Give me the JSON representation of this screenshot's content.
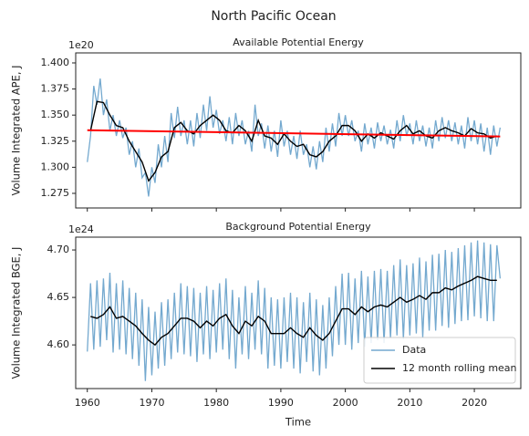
{
  "title": "North Pacific Ocean",
  "chart_data": [
    {
      "type": "line",
      "title": "Available Potential Energy",
      "offset_label": "1e20",
      "ylabel": "Volume Integrated APE, J",
      "xlim": [
        1958.2,
        2027.2
      ],
      "xticks": [
        1960,
        1970,
        1980,
        1990,
        2000,
        2010,
        2020
      ],
      "xtick_labels": false,
      "ylim": [
        1.261,
        1.4096
      ],
      "yticks": [
        1.275,
        {
          "value": 1.3,
          "label": "1.300"
        },
        1.325,
        {
          "value": 1.35,
          "label": "1.350"
        },
        1.375,
        {
          "value": 1.4,
          "label": "1.400"
        }
      ],
      "series": [
        {
          "color": "#74a9cf",
          "x": [
            1960,
            1960.5,
            1961,
            1961.5,
            1962,
            1962.5,
            1963,
            1963.5,
            1964,
            1964.5,
            1965,
            1965.5,
            1966,
            1966.5,
            1967,
            1967.5,
            1968,
            1968.5,
            1969,
            1969.5,
            1970,
            1970.5,
            1971,
            1971.5,
            1972,
            1972.5,
            1973,
            1973.5,
            1974,
            1974.5,
            1975,
            1975.5,
            1976,
            1976.5,
            1977,
            1977.5,
            1978,
            1978.5,
            1979,
            1979.5,
            1980,
            1980.5,
            1981,
            1981.5,
            1982,
            1982.5,
            1983,
            1983.5,
            1984,
            1984.5,
            1985,
            1985.5,
            1986,
            1986.5,
            1987,
            1987.5,
            1988,
            1988.5,
            1989,
            1989.5,
            1990,
            1990.5,
            1991,
            1991.5,
            1992,
            1992.5,
            1993,
            1993.5,
            1994,
            1994.5,
            1995,
            1995.5,
            1996,
            1996.5,
            1997,
            1997.5,
            1998,
            1998.5,
            1999,
            1999.5,
            2000,
            2000.5,
            2001,
            2001.5,
            2002,
            2002.5,
            2003,
            2003.5,
            2004,
            2004.5,
            2005,
            2005.5,
            2006,
            2006.5,
            2007,
            2007.5,
            2008,
            2008.5,
            2009,
            2009.5,
            2010,
            2010.5,
            2011,
            2011.5,
            2012,
            2012.5,
            2013,
            2013.5,
            2014,
            2014.5,
            2015,
            2015.5,
            2016,
            2016.5,
            2017,
            2017.5,
            2018,
            2018.5,
            2019,
            2019.5,
            2020,
            2020.5,
            2021,
            2021.5,
            2022,
            2022.5,
            2023,
            2023.5,
            2024
          ],
          "values": [
            1.305,
            1.33,
            1.378,
            1.36,
            1.385,
            1.35,
            1.365,
            1.335,
            1.35,
            1.33,
            1.345,
            1.328,
            1.338,
            1.312,
            1.325,
            1.3,
            1.318,
            1.29,
            1.295,
            1.272,
            1.3,
            1.285,
            1.322,
            1.3,
            1.33,
            1.305,
            1.352,
            1.328,
            1.358,
            1.33,
            1.345,
            1.322,
            1.345,
            1.32,
            1.352,
            1.328,
            1.36,
            1.335,
            1.368,
            1.338,
            1.355,
            1.332,
            1.345,
            1.325,
            1.348,
            1.322,
            1.352,
            1.33,
            1.345,
            1.322,
            1.335,
            1.315,
            1.36,
            1.33,
            1.342,
            1.318,
            1.34,
            1.315,
            1.335,
            1.31,
            1.345,
            1.32,
            1.335,
            1.312,
            1.33,
            1.308,
            1.335,
            1.312,
            1.322,
            1.3,
            1.32,
            1.298,
            1.325,
            1.305,
            1.338,
            1.315,
            1.342,
            1.32,
            1.352,
            1.33,
            1.35,
            1.33,
            1.345,
            1.325,
            1.335,
            1.315,
            1.342,
            1.322,
            1.338,
            1.318,
            1.343,
            1.325,
            1.34,
            1.322,
            1.336,
            1.318,
            1.345,
            1.325,
            1.35,
            1.33,
            1.342,
            1.322,
            1.345,
            1.325,
            1.34,
            1.32,
            1.338,
            1.318,
            1.345,
            1.325,
            1.348,
            1.328,
            1.345,
            1.325,
            1.343,
            1.322,
            1.34,
            1.318,
            1.348,
            1.325,
            1.345,
            1.322,
            1.342,
            1.315,
            1.338,
            1.312,
            1.34,
            1.32,
            1.338
          ]
        },
        {
          "color": "#000000",
          "x": [
            1960.5,
            1961.5,
            1962.5,
            1963.5,
            1964.5,
            1965.5,
            1966.5,
            1967.5,
            1968.5,
            1969.5,
            1970.5,
            1971.5,
            1972.5,
            1973.5,
            1974.5,
            1975.5,
            1976.5,
            1977.5,
            1978.5,
            1979.5,
            1980.5,
            1981.5,
            1982.5,
            1983.5,
            1984.5,
            1985.5,
            1986.5,
            1987.5,
            1988.5,
            1989.5,
            1990.5,
            1991.5,
            1992.5,
            1993.5,
            1994.5,
            1995.5,
            1996.5,
            1997.5,
            1998.5,
            1999.5,
            2000.5,
            2001.5,
            2002.5,
            2003.5,
            2004.5,
            2005.5,
            2006.5,
            2007.5,
            2008.5,
            2009.5,
            2010.5,
            2011.5,
            2012.5,
            2013.5,
            2014.5,
            2015.5,
            2016.5,
            2017.5,
            2018.5,
            2019.5,
            2020.5,
            2021.5,
            2022.5,
            2023.5
          ],
          "values": [
            1.335,
            1.363,
            1.362,
            1.35,
            1.34,
            1.338,
            1.325,
            1.315,
            1.305,
            1.287,
            1.295,
            1.31,
            1.315,
            1.338,
            1.343,
            1.335,
            1.332,
            1.34,
            1.345,
            1.35,
            1.345,
            1.335,
            1.333,
            1.34,
            1.335,
            1.325,
            1.345,
            1.33,
            1.328,
            1.322,
            1.332,
            1.325,
            1.32,
            1.322,
            1.312,
            1.31,
            1.315,
            1.325,
            1.33,
            1.34,
            1.34,
            1.335,
            1.325,
            1.332,
            1.328,
            1.333,
            1.33,
            1.327,
            1.335,
            1.34,
            1.332,
            1.335,
            1.33,
            1.328,
            1.335,
            1.338,
            1.335,
            1.333,
            1.33,
            1.337,
            1.333,
            1.332,
            1.328,
            1.33
          ]
        },
        {
          "color": "#ff0000",
          "x": [
            1960,
            2024
          ],
          "values": [
            1.3355,
            1.3295
          ]
        }
      ]
    },
    {
      "type": "line",
      "title": "Background Potential Energy",
      "offset_label": "1e24",
      "ylabel": "Volume Integrated BGE, J",
      "xlabel": "Time",
      "xlim": [
        1958.2,
        2027.2
      ],
      "xticks": [
        1960,
        1970,
        1980,
        1990,
        2000,
        2010,
        2020
      ],
      "xtick_labels": true,
      "ylim": [
        4.554,
        4.7135
      ],
      "yticks": [
        {
          "value": 4.6,
          "label": "4.60"
        },
        4.65,
        {
          "value": 4.7,
          "label": "4.70"
        }
      ],
      "legend": "lower right",
      "series": [
        {
          "name": "Data",
          "color": "#74a9cf",
          "x": [
            1960,
            1960.5,
            1961,
            1961.5,
            1962,
            1962.5,
            1963,
            1963.5,
            1964,
            1964.5,
            1965,
            1965.5,
            1966,
            1966.5,
            1967,
            1967.5,
            1968,
            1968.5,
            1969,
            1969.5,
            1970,
            1970.5,
            1971,
            1971.5,
            1972,
            1972.5,
            1973,
            1973.5,
            1974,
            1974.5,
            1975,
            1975.5,
            1976,
            1976.5,
            1977,
            1977.5,
            1978,
            1978.5,
            1979,
            1979.5,
            1980,
            1980.5,
            1981,
            1981.5,
            1982,
            1982.5,
            1983,
            1983.5,
            1984,
            1984.5,
            1985,
            1985.5,
            1986,
            1986.5,
            1987,
            1987.5,
            1988,
            1988.5,
            1989,
            1989.5,
            1990,
            1990.5,
            1991,
            1991.5,
            1992,
            1992.5,
            1993,
            1993.5,
            1994,
            1994.5,
            1995,
            1995.5,
            1996,
            1996.5,
            1997,
            1997.5,
            1998,
            1998.5,
            1999,
            1999.5,
            2000,
            2000.5,
            2001,
            2001.5,
            2002,
            2002.5,
            2003,
            2003.5,
            2004,
            2004.5,
            2005,
            2005.5,
            2006,
            2006.5,
            2007,
            2007.5,
            2008,
            2008.5,
            2009,
            2009.5,
            2010,
            2010.5,
            2011,
            2011.5,
            2012,
            2012.5,
            2013,
            2013.5,
            2014,
            2014.5,
            2015,
            2015.5,
            2016,
            2016.5,
            2017,
            2017.5,
            2018,
            2018.5,
            2019,
            2019.5,
            2020,
            2020.5,
            2021,
            2021.5,
            2022,
            2022.5,
            2023,
            2023.5,
            2024
          ],
          "values": [
            4.593,
            4.665,
            4.595,
            4.668,
            4.598,
            4.67,
            4.605,
            4.676,
            4.592,
            4.665,
            4.595,
            4.668,
            4.59,
            4.66,
            4.585,
            4.655,
            4.578,
            4.648,
            4.562,
            4.64,
            4.568,
            4.635,
            4.575,
            4.645,
            4.578,
            4.648,
            4.585,
            4.655,
            4.592,
            4.665,
            4.59,
            4.662,
            4.588,
            4.66,
            4.582,
            4.655,
            4.59,
            4.662,
            4.585,
            4.658,
            4.592,
            4.665,
            4.595,
            4.67,
            4.585,
            4.658,
            4.575,
            4.65,
            4.59,
            4.662,
            4.585,
            4.655,
            4.595,
            4.668,
            4.59,
            4.66,
            4.575,
            4.65,
            4.578,
            4.648,
            4.575,
            4.65,
            4.582,
            4.655,
            4.575,
            4.65,
            4.57,
            4.645,
            4.582,
            4.655,
            4.572,
            4.648,
            4.568,
            4.642,
            4.575,
            4.65,
            4.588,
            4.662,
            4.6,
            4.675,
            4.6,
            4.676,
            4.595,
            4.67,
            4.602,
            4.678,
            4.598,
            4.672,
            4.602,
            4.678,
            4.605,
            4.68,
            4.602,
            4.678,
            4.607,
            4.684,
            4.61,
            4.69,
            4.606,
            4.684,
            4.61,
            4.686,
            4.612,
            4.692,
            4.608,
            4.688,
            4.615,
            4.695,
            4.615,
            4.696,
            4.62,
            4.7,
            4.618,
            4.698,
            4.622,
            4.702,
            4.625,
            4.705,
            4.626,
            4.708,
            4.63,
            4.71,
            4.628,
            4.708,
            4.625,
            4.706,
            4.625,
            4.705,
            4.67
          ]
        },
        {
          "name": "12 month rolling mean",
          "color": "#000000",
          "x": [
            1960.5,
            1961.5,
            1962.5,
            1963.5,
            1964.5,
            1965.5,
            1966.5,
            1967.5,
            1968.5,
            1969.5,
            1970.5,
            1971.5,
            1972.5,
            1973.5,
            1974.5,
            1975.5,
            1976.5,
            1977.5,
            1978.5,
            1979.5,
            1980.5,
            1981.5,
            1982.5,
            1983.5,
            1984.5,
            1985.5,
            1986.5,
            1987.5,
            1988.5,
            1989.5,
            1990.5,
            1991.5,
            1992.5,
            1993.5,
            1994.5,
            1995.5,
            1996.5,
            1997.5,
            1998.5,
            1999.5,
            2000.5,
            2001.5,
            2002.5,
            2003.5,
            2004.5,
            2005.5,
            2006.5,
            2007.5,
            2008.5,
            2009.5,
            2010.5,
            2011.5,
            2012.5,
            2013.5,
            2014.5,
            2015.5,
            2016.5,
            2017.5,
            2018.5,
            2019.5,
            2020.5,
            2021.5,
            2022.5,
            2023.5
          ],
          "values": [
            4.63,
            4.628,
            4.632,
            4.64,
            4.628,
            4.63,
            4.625,
            4.62,
            4.612,
            4.605,
            4.6,
            4.608,
            4.612,
            4.62,
            4.628,
            4.628,
            4.625,
            4.618,
            4.625,
            4.62,
            4.628,
            4.632,
            4.62,
            4.612,
            4.625,
            4.62,
            4.63,
            4.625,
            4.612,
            4.612,
            4.612,
            4.618,
            4.612,
            4.608,
            4.618,
            4.61,
            4.605,
            4.612,
            4.625,
            4.638,
            4.638,
            4.632,
            4.64,
            4.635,
            4.64,
            4.642,
            4.64,
            4.645,
            4.65,
            4.645,
            4.648,
            4.652,
            4.648,
            4.655,
            4.655,
            4.66,
            4.658,
            4.662,
            4.665,
            4.668,
            4.672,
            4.67,
            4.668,
            4.668
          ]
        }
      ]
    }
  ]
}
